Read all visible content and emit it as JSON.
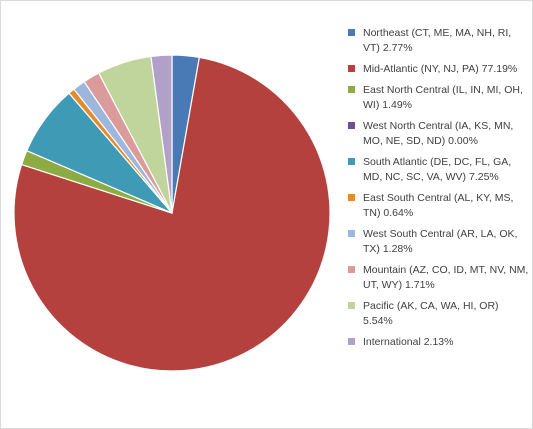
{
  "chart_data": {
    "type": "pie",
    "start_angle_deg": 0,
    "direction": "clockwise",
    "slices": [
      {
        "label": "Northeast (CT, ME, MA, NH, RI, VT) 2.77%",
        "value": 2.77,
        "color": "#4a7ab5"
      },
      {
        "label": "Mid-Atlantic (NY, NJ, PA) 77.19%",
        "value": 77.19,
        "color": "#b5413f"
      },
      {
        "label": "East North Central (IL, IN, MI, OH, WI) 1.49%",
        "value": 1.49,
        "color": "#8cac43"
      },
      {
        "label": "West North Central (IA, KS, MN, MO, NE, SD, ND) 0.00%",
        "value": 0.0,
        "color": "#6e4f95"
      },
      {
        "label": "South Atlantic (DE, DC, FL, GA, MD, NC, SC, VA, WV) 7.25%",
        "value": 7.25,
        "color": "#3e9ab5"
      },
      {
        "label": "East South Central (AL, KY, MS, TN) 0.64%",
        "value": 0.64,
        "color": "#e58a2e"
      },
      {
        "label": "West South Central (AR, LA, OK, TX) 1.28%",
        "value": 1.28,
        "color": "#9db6dc"
      },
      {
        "label": "Mountain (AZ, CO, ID, MT, NV, NM, UT, WY) 1.71%",
        "value": 1.71,
        "color": "#db9b9a"
      },
      {
        "label": "Pacific (AK, CA, WA, HI, OR) 5.54%",
        "value": 5.54,
        "color": "#c0d59b"
      },
      {
        "label": "International 2.13%",
        "value": 2.13,
        "color": "#b1a1c9"
      }
    ],
    "legend_position": "right"
  }
}
